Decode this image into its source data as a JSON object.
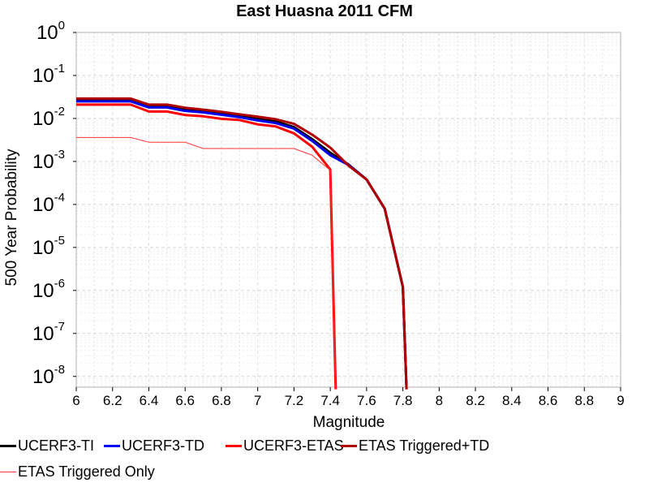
{
  "chart_data": {
    "type": "line",
    "title": "East Huasna 2011 CFM",
    "xlabel": "Magnitude",
    "ylabel": "500 Year Probability",
    "xlim": [
      6,
      9
    ],
    "ylim_log10": [
      -8.25,
      0
    ],
    "yscale": "log",
    "grid": true,
    "legend_position": "bottom",
    "x_ticks": [
      "6",
      "6.2",
      "6.4",
      "6.6",
      "6.8",
      "7",
      "7.2",
      "7.4",
      "7.6",
      "7.8",
      "8",
      "8.2",
      "8.4",
      "8.6",
      "8.8",
      "9"
    ],
    "y_ticks": [
      {
        "base": "10",
        "exp": "0",
        "log": 0
      },
      {
        "base": "10",
        "exp": "-1",
        "log": -1
      },
      {
        "base": "10",
        "exp": "-2",
        "log": -2
      },
      {
        "base": "10",
        "exp": "-3",
        "log": -3
      },
      {
        "base": "10",
        "exp": "-4",
        "log": -4
      },
      {
        "base": "10",
        "exp": "-5",
        "log": -5
      },
      {
        "base": "10",
        "exp": "-6",
        "log": -6
      },
      {
        "base": "10",
        "exp": "-7",
        "log": -7
      },
      {
        "base": "10",
        "exp": "-8",
        "log": -8
      }
    ],
    "series": [
      {
        "name": "UCERF3-TI",
        "color": "#000000",
        "weight": "thick",
        "x": [
          6.0,
          6.1,
          6.2,
          6.3,
          6.4,
          6.5,
          6.6,
          6.7,
          6.8,
          6.9,
          7.0,
          7.1,
          7.2,
          7.3,
          7.4,
          7.5,
          7.6,
          7.7,
          7.8,
          7.82
        ],
        "y": [
          0.026,
          0.026,
          0.026,
          0.026,
          0.019,
          0.019,
          0.016,
          0.0145,
          0.013,
          0.0115,
          0.0098,
          0.0085,
          0.0063,
          0.0033,
          0.0016,
          0.00085,
          0.00038,
          8e-05,
          1.2e-06,
          5e-09
        ]
      },
      {
        "name": "UCERF3-TD",
        "color": "#0000ee",
        "weight": "thick",
        "x": [
          6.0,
          6.1,
          6.2,
          6.3,
          6.4,
          6.5,
          6.6,
          6.7,
          6.8,
          6.9,
          7.0,
          7.1,
          7.2,
          7.3,
          7.4,
          7.5,
          7.6,
          7.7,
          7.8,
          7.82
        ],
        "y": [
          0.025,
          0.025,
          0.025,
          0.025,
          0.018,
          0.018,
          0.015,
          0.0138,
          0.0122,
          0.0107,
          0.009,
          0.0078,
          0.0058,
          0.003,
          0.0014,
          0.00083,
          0.00038,
          8e-05,
          1.2e-06,
          5e-09
        ]
      },
      {
        "name": "UCERF3-ETAS",
        "color": "#ff0000",
        "weight": "thick",
        "x": [
          6.0,
          6.1,
          6.2,
          6.3,
          6.4,
          6.5,
          6.6,
          6.7,
          6.8,
          6.9,
          7.0,
          7.1,
          7.2,
          7.3,
          7.4,
          7.43
        ],
        "y": [
          0.021,
          0.021,
          0.021,
          0.021,
          0.0145,
          0.0145,
          0.012,
          0.0112,
          0.0098,
          0.0092,
          0.0073,
          0.0065,
          0.0045,
          0.0022,
          0.00065,
          5e-09
        ]
      },
      {
        "name": "ETAS Triggered+TD",
        "color": "#b00000",
        "weight": "thick",
        "x": [
          6.0,
          6.1,
          6.2,
          6.3,
          6.4,
          6.5,
          6.6,
          6.7,
          6.8,
          6.9,
          7.0,
          7.1,
          7.2,
          7.3,
          7.4,
          7.5,
          7.6,
          7.7,
          7.8,
          7.82
        ],
        "y": [
          0.029,
          0.029,
          0.029,
          0.029,
          0.021,
          0.021,
          0.0178,
          0.016,
          0.0143,
          0.0125,
          0.011,
          0.0096,
          0.0075,
          0.0042,
          0.0021,
          0.0008,
          0.00038,
          8e-05,
          1.2e-06,
          5e-09
        ]
      },
      {
        "name": "ETAS Triggered Only",
        "color": "#ff3333",
        "weight": "thin",
        "x": [
          6.0,
          6.1,
          6.2,
          6.3,
          6.4,
          6.5,
          6.6,
          6.7,
          6.8,
          6.9,
          7.0,
          7.1,
          7.2,
          7.3,
          7.4,
          7.43
        ],
        "y": [
          0.0036,
          0.0036,
          0.0036,
          0.0036,
          0.0028,
          0.0028,
          0.0028,
          0.002,
          0.002,
          0.002,
          0.002,
          0.002,
          0.002,
          0.0014,
          0.00062,
          5e-09
        ]
      }
    ]
  }
}
